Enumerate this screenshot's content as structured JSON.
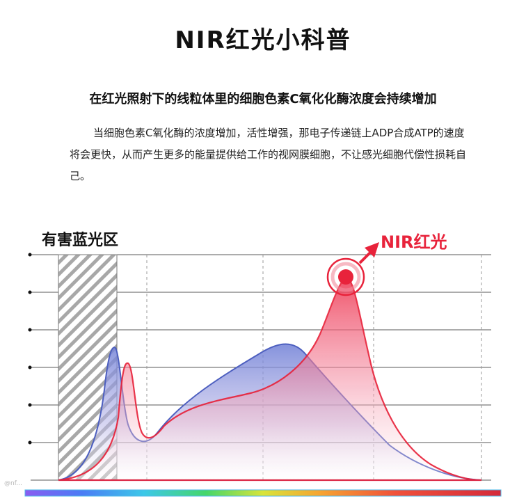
{
  "title": "NIR红光小科普",
  "subtitle": "在红光照射下的线粒体里的细胞色素C氧化化酶浓度会持续增加",
  "body": "当细胞色素C氧化酶的浓度增加，活性增强，那电子传递链上ADP合成ATP的速度将会更快，从而产生更多的能量提供给工作的视网膜细胞，不让感光细胞代偿性损耗自己。",
  "labels": {
    "harmful_blue": "有害蓝光区",
    "nir_red": "NIR红光"
  },
  "watermark": "@nf...",
  "colors": {
    "red": "#e8233b",
    "blue": "#5a6ec8",
    "hatch": "#9a9a9a",
    "grid": "#555555"
  }
}
